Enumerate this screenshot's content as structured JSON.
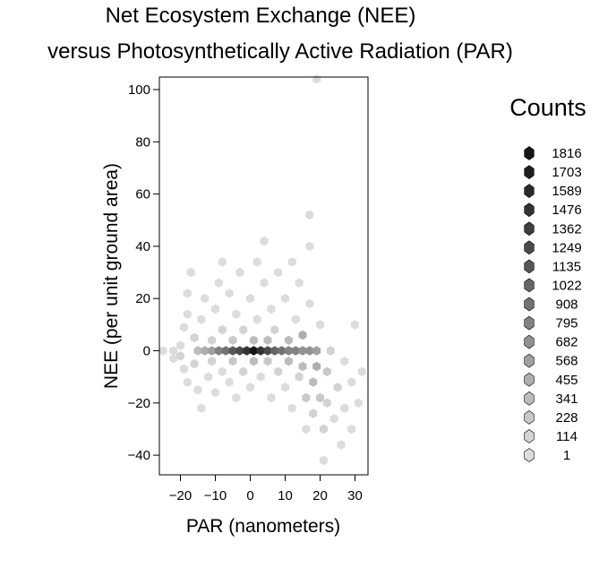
{
  "chart_data": {
    "type": "hexbin",
    "title": "Net Ecosystem Exchange (NEE)",
    "subtitle": "versus Photosynthetically Active Radiation (PAR)",
    "xlabel": "PAR (nanometers)",
    "ylabel": "NEE (per unit ground area)",
    "xlim": [
      -26,
      34
    ],
    "ylim": [
      -48,
      105
    ],
    "xticks": [
      -20,
      -10,
      0,
      10,
      20,
      30
    ],
    "xtick_labels": [
      "−20",
      "−10",
      "0",
      "10",
      "20",
      "30"
    ],
    "yticks": [
      -40,
      -20,
      0,
      20,
      40,
      60,
      80,
      100
    ],
    "ytick_labels": [
      "−40",
      "−20",
      "0",
      "20",
      "40",
      "60",
      "80",
      "100"
    ],
    "grid": false,
    "legend": {
      "title": "Counts",
      "position": "right",
      "levels": [
        1816,
        1703,
        1589,
        1476,
        1362,
        1249,
        1135,
        1022,
        908,
        795,
        682,
        568,
        455,
        341,
        228,
        114,
        1
      ],
      "level_labels": [
        "1816",
        "1703",
        "1589",
        "1476",
        "1362",
        "1249",
        "1135",
        "1022",
        "908",
        "795",
        "682",
        "568",
        "455",
        "341",
        "228",
        "114",
        "1"
      ]
    },
    "count_colors": [
      "#dcdcdc",
      "#d3d3d3",
      "#c8c8c8",
      "#bcbcbc",
      "#aeaeae",
      "#a0a0a0",
      "#919191",
      "#828282",
      "#737373",
      "#656565",
      "#575757",
      "#4a4a4a",
      "#3e3e3e",
      "#333333",
      "#292929",
      "#1f1f1f",
      "#161616"
    ],
    "bins": [
      {
        "x": -25,
        "y": 0,
        "count": 20
      },
      {
        "x": -22,
        "y": 0,
        "count": 80
      },
      {
        "x": -22,
        "y": -3,
        "count": 30
      },
      {
        "x": -20,
        "y": 2,
        "count": 100
      },
      {
        "x": -20,
        "y": -2,
        "count": 120
      },
      {
        "x": -19,
        "y": -7,
        "count": 40
      },
      {
        "x": -19,
        "y": 9,
        "count": 30
      },
      {
        "x": -18,
        "y": 14,
        "count": 20
      },
      {
        "x": -18,
        "y": 22,
        "count": 15
      },
      {
        "x": -18,
        "y": -12,
        "count": 15
      },
      {
        "x": -17,
        "y": 30,
        "count": 10
      },
      {
        "x": -16,
        "y": 5,
        "count": 150
      },
      {
        "x": -16,
        "y": -5,
        "count": 140
      },
      {
        "x": -15,
        "y": 0,
        "count": 420
      },
      {
        "x": -15,
        "y": -15,
        "count": 20
      },
      {
        "x": -14,
        "y": 12,
        "count": 40
      },
      {
        "x": -14,
        "y": -22,
        "count": 10
      },
      {
        "x": -13,
        "y": 0,
        "count": 560
      },
      {
        "x": -13,
        "y": 20,
        "count": 30
      },
      {
        "x": -12,
        "y": -10,
        "count": 60
      },
      {
        "x": -11,
        "y": 0,
        "count": 680
      },
      {
        "x": -11,
        "y": 4,
        "count": 200
      },
      {
        "x": -11,
        "y": -4,
        "count": 180
      },
      {
        "x": -10,
        "y": 16,
        "count": 40
      },
      {
        "x": -10,
        "y": -16,
        "count": 30
      },
      {
        "x": -9,
        "y": 26,
        "count": 20
      },
      {
        "x": -9,
        "y": 0,
        "count": 820
      },
      {
        "x": -8,
        "y": 34,
        "count": 15
      },
      {
        "x": -8,
        "y": 8,
        "count": 120
      },
      {
        "x": -8,
        "y": -8,
        "count": 100
      },
      {
        "x": -7,
        "y": 0,
        "count": 980
      },
      {
        "x": -6,
        "y": 22,
        "count": 40
      },
      {
        "x": -6,
        "y": -12,
        "count": 50
      },
      {
        "x": -5,
        "y": 0,
        "count": 1150
      },
      {
        "x": -5,
        "y": 4,
        "count": 300
      },
      {
        "x": -5,
        "y": -4,
        "count": 280
      },
      {
        "x": -4,
        "y": 14,
        "count": 60
      },
      {
        "x": -4,
        "y": -18,
        "count": 20
      },
      {
        "x": -3,
        "y": 0,
        "count": 1350
      },
      {
        "x": -3,
        "y": 30,
        "count": 20
      },
      {
        "x": -2,
        "y": 8,
        "count": 160
      },
      {
        "x": -2,
        "y": -8,
        "count": 140
      },
      {
        "x": -1,
        "y": 0,
        "count": 1580
      },
      {
        "x": 0,
        "y": 20,
        "count": 50
      },
      {
        "x": 0,
        "y": -14,
        "count": 40
      },
      {
        "x": 1,
        "y": 0,
        "count": 1816
      },
      {
        "x": 1,
        "y": 4,
        "count": 400
      },
      {
        "x": 1,
        "y": -4,
        "count": 380
      },
      {
        "x": 2,
        "y": 34,
        "count": 20
      },
      {
        "x": 2,
        "y": 12,
        "count": 90
      },
      {
        "x": 3,
        "y": 0,
        "count": 1500
      },
      {
        "x": 3,
        "y": -10,
        "count": 60
      },
      {
        "x": 4,
        "y": 26,
        "count": 30
      },
      {
        "x": 4,
        "y": 42,
        "count": 10
      },
      {
        "x": 5,
        "y": 0,
        "count": 1300
      },
      {
        "x": 5,
        "y": 4,
        "count": 350
      },
      {
        "x": 5,
        "y": -4,
        "count": 330
      },
      {
        "x": 6,
        "y": 16,
        "count": 60
      },
      {
        "x": 6,
        "y": -18,
        "count": 30
      },
      {
        "x": 7,
        "y": 0,
        "count": 1100
      },
      {
        "x": 7,
        "y": 8,
        "count": 180
      },
      {
        "x": 8,
        "y": -8,
        "count": 160
      },
      {
        "x": 8,
        "y": 30,
        "count": 25
      },
      {
        "x": 9,
        "y": 0,
        "count": 950
      },
      {
        "x": 10,
        "y": 20,
        "count": 50
      },
      {
        "x": 10,
        "y": -14,
        "count": 80
      },
      {
        "x": 11,
        "y": 0,
        "count": 850
      },
      {
        "x": 11,
        "y": 4,
        "count": 420
      },
      {
        "x": 11,
        "y": -4,
        "count": 400
      },
      {
        "x": 12,
        "y": 34,
        "count": 20
      },
      {
        "x": 12,
        "y": -22,
        "count": 60
      },
      {
        "x": 13,
        "y": 0,
        "count": 800
      },
      {
        "x": 13,
        "y": 12,
        "count": 100
      },
      {
        "x": 14,
        "y": -10,
        "count": 220
      },
      {
        "x": 14,
        "y": 26,
        "count": 30
      },
      {
        "x": 15,
        "y": 0,
        "count": 760
      },
      {
        "x": 15,
        "y": 6,
        "count": 500
      },
      {
        "x": 15,
        "y": -6,
        "count": 450
      },
      {
        "x": 16,
        "y": -18,
        "count": 300
      },
      {
        "x": 16,
        "y": -30,
        "count": 60
      },
      {
        "x": 17,
        "y": 0,
        "count": 720
      },
      {
        "x": 17,
        "y": 18,
        "count": 80
      },
      {
        "x": 17,
        "y": 40,
        "count": 15
      },
      {
        "x": 17,
        "y": 52,
        "count": 5
      },
      {
        "x": 18,
        "y": -12,
        "count": 380
      },
      {
        "x": 18,
        "y": -24,
        "count": 200
      },
      {
        "x": 19,
        "y": 0,
        "count": 650
      },
      {
        "x": 19,
        "y": -6,
        "count": 520
      },
      {
        "x": 20,
        "y": -18,
        "count": 320
      },
      {
        "x": 20,
        "y": 10,
        "count": 100
      },
      {
        "x": 21,
        "y": -30,
        "count": 150
      },
      {
        "x": 21,
        "y": -42,
        "count": 40
      },
      {
        "x": 22,
        "y": -8,
        "count": 300
      },
      {
        "x": 22,
        "y": -20,
        "count": 220
      },
      {
        "x": 23,
        "y": 0,
        "count": 120
      },
      {
        "x": 24,
        "y": -26,
        "count": 100
      },
      {
        "x": 25,
        "y": -14,
        "count": 140
      },
      {
        "x": 26,
        "y": -36,
        "count": 40
      },
      {
        "x": 27,
        "y": -4,
        "count": 60
      },
      {
        "x": 27,
        "y": -22,
        "count": 80
      },
      {
        "x": 29,
        "y": -12,
        "count": 60
      },
      {
        "x": 29,
        "y": -30,
        "count": 30
      },
      {
        "x": 30,
        "y": 10,
        "count": 15
      },
      {
        "x": 31,
        "y": -20,
        "count": 25
      },
      {
        "x": 32,
        "y": -8,
        "count": 10
      },
      {
        "x": 19,
        "y": 104,
        "count": 1
      }
    ]
  }
}
